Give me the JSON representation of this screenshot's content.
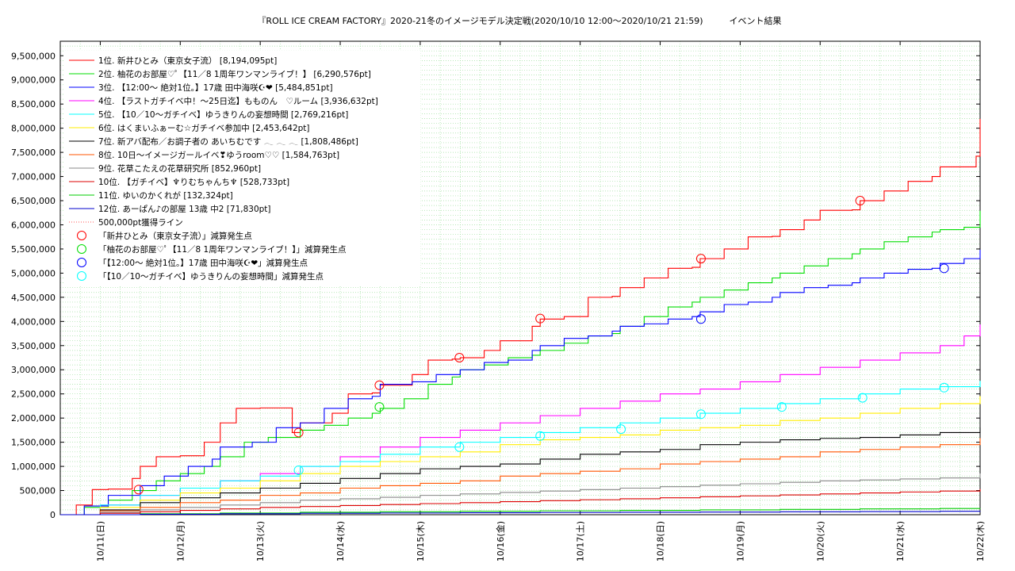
{
  "chart_data": {
    "type": "line",
    "title": "『ROLL ICE CREAM FACTORY』2020-21冬のイメージモデル決定戦(2020/10/10 12:00〜2020/10/21 21:59)　　　イベント結果",
    "xlabel": "",
    "ylabel": "",
    "x_ticks": [
      "10/11(日)",
      "10/12(月)",
      "10/13(火)",
      "10/14(水)",
      "10/15(木)",
      "10/16(金)",
      "10/17(土)",
      "10/18(日)",
      "10/19(月)",
      "10/20(火)",
      "10/21(水)",
      "10/22(木)"
    ],
    "xlim": [
      0,
      11.5
    ],
    "ylim": [
      0,
      9800000
    ],
    "y_ticks": [
      0,
      500000,
      1000000,
      1500000,
      2000000,
      2500000,
      3000000,
      3500000,
      4000000,
      4500000,
      5000000,
      5500000,
      6000000,
      6500000,
      7000000,
      7500000,
      8000000,
      8500000,
      9000000,
      9500000
    ],
    "y_tick_labels": [
      "0",
      "500,000",
      "1,000,000",
      "1,500,000",
      "2,000,000",
      "2,500,000",
      "3,000,000",
      "3,500,000",
      "4,000,000",
      "4,500,000",
      "5,000,000",
      "5,500,000",
      "6,000,000",
      "6,500,000",
      "7,000,000",
      "7,500,000",
      "8,000,000",
      "8,500,000",
      "9,000,000",
      "9,500,000"
    ],
    "grid": true,
    "legend_position": "top-left",
    "series": [
      {
        "name": "1位. 新井ひとみ（東京女子流） [8,194,095pt]",
        "color": "#ff0000",
        "x": [
          0,
          0.2,
          0.4,
          0.6,
          0.9,
          1.0,
          1.2,
          1.5,
          1.8,
          2.0,
          2.2,
          2.5,
          2.9,
          3.0,
          3.4,
          3.6,
          3.9,
          4.0,
          4.4,
          4.6,
          4.9,
          5.0,
          5.3,
          5.5,
          5.9,
          6.0,
          6.3,
          6.6,
          6.9,
          7.0,
          7.3,
          7.6,
          7.9,
          8.0,
          8.3,
          8.6,
          8.9,
          9.0,
          9.3,
          9.5,
          9.9,
          10.0,
          10.3,
          10.6,
          10.9,
          11.0,
          11.45,
          11.5
        ],
        "y": [
          0,
          200000,
          520000,
          530000,
          750000,
          1000000,
          1200000,
          1220000,
          1500000,
          1900000,
          2200000,
          2210000,
          1700000,
          1900000,
          2100000,
          2500000,
          2520000,
          2680000,
          2900000,
          3200000,
          3220000,
          3250000,
          3400000,
          3600000,
          3900000,
          4050000,
          4100000,
          4500000,
          4520000,
          4700000,
          4900000,
          5100000,
          5120000,
          5300000,
          5500000,
          5750000,
          5760000,
          5900000,
          6100000,
          6300000,
          6310000,
          6500000,
          6700000,
          6900000,
          7000000,
          7200000,
          7420000,
          8194095
        ]
      },
      {
        "name": "2位. 柚花のお部屋♡ﾟ【11／8 1周年ワンマンライブ！】 [6,290,576pt]",
        "color": "#00dd00",
        "x": [
          0,
          0.3,
          0.6,
          0.9,
          1.2,
          1.5,
          1.8,
          2.0,
          2.3,
          2.6,
          3.0,
          3.3,
          3.6,
          3.9,
          4.0,
          4.3,
          4.6,
          4.9,
          5.0,
          5.3,
          5.6,
          5.9,
          6.0,
          6.3,
          6.6,
          6.9,
          7.0,
          7.3,
          7.6,
          7.9,
          8.0,
          8.3,
          8.6,
          8.9,
          9.0,
          9.3,
          9.6,
          9.9,
          10.0,
          10.3,
          10.6,
          10.9,
          11.0,
          11.3,
          11.5
        ],
        "y": [
          0,
          150000,
          300000,
          500000,
          700000,
          850000,
          1000000,
          1200000,
          1500000,
          1600000,
          1750000,
          1850000,
          2000000,
          2100000,
          2200000,
          2400000,
          2700000,
          2850000,
          3000000,
          3100000,
          3250000,
          3300000,
          3400000,
          3550000,
          3700000,
          3750000,
          3900000,
          4100000,
          4300000,
          4400000,
          4500000,
          4650000,
          4800000,
          4900000,
          5000000,
          5150000,
          5300000,
          5400000,
          5500000,
          5650000,
          5750000,
          5850000,
          5900000,
          5950000,
          6290576
        ]
      },
      {
        "name": "3位. 【12:00〜 絶対1位。】17歳 田中海咲☪︎❤︎ [5,484,851pt]",
        "color": "#0000ff",
        "x": [
          0,
          0.3,
          0.6,
          1.0,
          1.3,
          1.6,
          1.9,
          2.0,
          2.4,
          2.7,
          3.0,
          3.3,
          3.6,
          3.9,
          4.0,
          4.4,
          4.7,
          5.0,
          5.3,
          5.6,
          5.9,
          6.0,
          6.3,
          6.6,
          6.9,
          7.0,
          7.3,
          7.6,
          7.9,
          8.0,
          8.3,
          8.6,
          8.9,
          9.0,
          9.3,
          9.6,
          9.9,
          10.0,
          10.3,
          10.6,
          10.9,
          11.0,
          11.3,
          11.5
        ],
        "y": [
          0,
          180000,
          400000,
          600000,
          800000,
          1000000,
          1150000,
          1400000,
          1500000,
          1800000,
          1900000,
          2200000,
          2400000,
          2450000,
          2700000,
          2750000,
          2900000,
          3000000,
          3150000,
          3200000,
          3400000,
          3500000,
          3650000,
          3700000,
          3800000,
          3900000,
          3950000,
          4050000,
          4100000,
          4200000,
          4350000,
          4400000,
          4500000,
          4600000,
          4700000,
          4750000,
          4800000,
          4900000,
          5000000,
          5080000,
          5100000,
          5200000,
          5300000,
          5484851
        ]
      },
      {
        "name": "4位. 【ラストガチイベ中！〜25日迄】もものん　♡ルーム [3,936,632pt]",
        "color": "#ff00ff",
        "x": [
          0,
          0.5,
          1.0,
          1.5,
          2.0,
          2.5,
          3.0,
          3.5,
          4.0,
          4.5,
          5.0,
          5.5,
          6.0,
          6.5,
          7.0,
          7.5,
          8.0,
          8.5,
          9.0,
          9.5,
          10.0,
          10.5,
          11.0,
          11.3,
          11.5
        ],
        "y": [
          0,
          200000,
          400000,
          550000,
          700000,
          850000,
          1000000,
          1200000,
          1400000,
          1600000,
          1750000,
          1900000,
          2050000,
          2200000,
          2350000,
          2500000,
          2600000,
          2750000,
          2900000,
          3050000,
          3200000,
          3350000,
          3500000,
          3700000,
          3936632
        ]
      },
      {
        "name": "5位. 【10／10〜ガチイベ】ゆうきりんの妄想時間 [2,769,216pt]",
        "color": "#00ffff",
        "x": [
          0,
          0.5,
          1.0,
          1.5,
          2.0,
          2.5,
          3.0,
          3.5,
          4.0,
          4.5,
          5.0,
          5.5,
          6.0,
          6.5,
          7.0,
          7.5,
          8.0,
          8.5,
          9.0,
          9.5,
          10.0,
          10.5,
          11.0,
          11.5
        ],
        "y": [
          0,
          200000,
          400000,
          550000,
          700000,
          800000,
          1000000,
          1100000,
          1250000,
          1400000,
          1500000,
          1600000,
          1700000,
          1800000,
          1900000,
          2000000,
          2100000,
          2200000,
          2300000,
          2400000,
          2500000,
          2600000,
          2650000,
          2769216
        ]
      },
      {
        "name": "6位. はくまいふぁーむ☆ガチイベ参加中 [2,453,642pt]",
        "color": "#ffee00",
        "x": [
          0,
          0.5,
          1.0,
          1.5,
          2.0,
          2.5,
          3.0,
          3.5,
          4.0,
          4.5,
          5.0,
          5.5,
          6.0,
          6.5,
          7.0,
          7.5,
          8.0,
          8.5,
          9.0,
          9.5,
          10.0,
          10.5,
          11.0,
          11.5
        ],
        "y": [
          0,
          150000,
          300000,
          450000,
          550000,
          700000,
          850000,
          1000000,
          1100000,
          1200000,
          1300000,
          1450000,
          1550000,
          1600000,
          1650000,
          1750000,
          1800000,
          1850000,
          1950000,
          2000000,
          2100000,
          2200000,
          2300000,
          2453642
        ]
      },
      {
        "name": "7位. 新アバ配布／お調子者の あいちむです 𓂃 𓂃 𓂃 [1,808,486pt]",
        "color": "#000000",
        "x": [
          0,
          0.5,
          1.0,
          1.5,
          2.0,
          2.5,
          3.0,
          3.5,
          4.0,
          4.5,
          5.0,
          5.5,
          6.0,
          6.5,
          7.0,
          7.5,
          8.0,
          8.5,
          9.0,
          9.5,
          10.0,
          10.5,
          11.0,
          11.5
        ],
        "y": [
          0,
          100000,
          250000,
          350000,
          450000,
          550000,
          650000,
          750000,
          850000,
          950000,
          1000000,
          1050000,
          1150000,
          1250000,
          1300000,
          1350000,
          1450000,
          1500000,
          1550000,
          1580000,
          1600000,
          1650000,
          1700000,
          1808486
        ]
      },
      {
        "name": "8位. 10日〜イメージガールイベ❣ゆうroom♡♡ [1,584,763pt]",
        "color": "#ff5500",
        "x": [
          0,
          0.5,
          1.0,
          1.5,
          2.0,
          2.5,
          3.0,
          3.5,
          4.0,
          4.5,
          5.0,
          5.5,
          6.0,
          6.5,
          7.0,
          7.5,
          8.0,
          8.5,
          9.0,
          9.5,
          10.0,
          10.5,
          11.0,
          11.5
        ],
        "y": [
          0,
          80000,
          150000,
          250000,
          300000,
          400000,
          450000,
          550000,
          600000,
          650000,
          700000,
          800000,
          850000,
          900000,
          950000,
          1050000,
          1100000,
          1150000,
          1200000,
          1300000,
          1350000,
          1400000,
          1450000,
          1584763
        ]
      },
      {
        "name": "9位. 花草こたえの花草研究所 [852,960pt]",
        "color": "#888888",
        "x": [
          0,
          0.5,
          1.0,
          1.5,
          2.0,
          2.5,
          3.0,
          3.5,
          4.0,
          4.5,
          5.0,
          5.5,
          6.0,
          6.5,
          7.0,
          7.5,
          8.0,
          8.5,
          9.0,
          9.5,
          10.0,
          10.5,
          11.0,
          11.5
        ],
        "y": [
          0,
          50000,
          100000,
          150000,
          200000,
          250000,
          300000,
          330000,
          360000,
          400000,
          430000,
          460000,
          490000,
          520000,
          550000,
          580000,
          610000,
          640000,
          670000,
          700000,
          720000,
          740000,
          760000,
          852960
        ]
      },
      {
        "name": "10位. 【ガチイベ】♆りむちゃんち♆ [528,733pt]",
        "color": "#dd0000",
        "x": [
          0,
          0.5,
          1.0,
          1.5,
          2.0,
          2.5,
          3.0,
          3.5,
          4.0,
          4.5,
          5.0,
          5.5,
          6.0,
          6.5,
          7.0,
          7.5,
          8.0,
          8.5,
          9.0,
          9.5,
          10.0,
          10.5,
          11.0,
          11.5
        ],
        "y": [
          0,
          30000,
          60000,
          90000,
          120000,
          150000,
          170000,
          190000,
          210000,
          230000,
          250000,
          270000,
          290000,
          310000,
          330000,
          350000,
          370000,
          390000,
          410000,
          430000,
          450000,
          470000,
          490000,
          528733
        ]
      },
      {
        "name": "11位. ゆいのかくれが [132,324pt]",
        "color": "#00cc00",
        "x": [
          0,
          1,
          2,
          3,
          4,
          5,
          6,
          7,
          8,
          9,
          10,
          11,
          11.5
        ],
        "y": [
          0,
          20000,
          35000,
          50000,
          60000,
          70000,
          80000,
          90000,
          100000,
          110000,
          120000,
          128000,
          132324
        ]
      },
      {
        "name": "12位. あーぱん♪の部屋 13歳 中2 [71,830pt]",
        "color": "#0000cc",
        "x": [
          0,
          1,
          2,
          3,
          4,
          5,
          6,
          7,
          8,
          9,
          10,
          11,
          11.5
        ],
        "y": [
          0,
          10000,
          20000,
          30000,
          35000,
          40000,
          45000,
          50000,
          55000,
          60000,
          65000,
          70000,
          71830
        ]
      }
    ],
    "reference_line": {
      "name": "500,000pt獲得ライン",
      "value": 500000,
      "color": "#ff5555"
    },
    "marker_sets": [
      {
        "name": "「新井ひとみ（東京女子流）」減算発生点",
        "color": "#ff0000",
        "points": [
          {
            "x": 0.98,
            "y": 520000
          },
          {
            "x": 2.98,
            "y": 1700000
          },
          {
            "x": 3.99,
            "y": 2680000
          },
          {
            "x": 4.99,
            "y": 3250000
          },
          {
            "x": 6.0,
            "y": 4060000
          },
          {
            "x": 8.01,
            "y": 5300000
          },
          {
            "x": 10.0,
            "y": 6500000
          }
        ]
      },
      {
        "name": "「柚花のお部屋♡ﾟ【11／8 1周年ワンマンライブ！】」減算発生点",
        "color": "#00dd00",
        "points": [
          {
            "x": 3.99,
            "y": 2230000
          }
        ]
      },
      {
        "name": "「【12:00〜 絶対1位。】17歳 田中海咲☪︎❤︎」減算発生点",
        "color": "#0000ff",
        "points": [
          {
            "x": 8.01,
            "y": 4050000
          },
          {
            "x": 11.05,
            "y": 5100000
          }
        ]
      },
      {
        "name": "「【10／10〜ガチイベ】ゆうきりんの妄想時間」減算発生点",
        "color": "#00ffff",
        "points": [
          {
            "x": 2.98,
            "y": 920000
          },
          {
            "x": 4.99,
            "y": 1400000
          },
          {
            "x": 6.0,
            "y": 1630000
          },
          {
            "x": 7.01,
            "y": 1770000
          },
          {
            "x": 8.01,
            "y": 2080000
          },
          {
            "x": 9.02,
            "y": 2230000
          },
          {
            "x": 10.03,
            "y": 2420000
          },
          {
            "x": 11.05,
            "y": 2630000
          }
        ]
      }
    ]
  }
}
